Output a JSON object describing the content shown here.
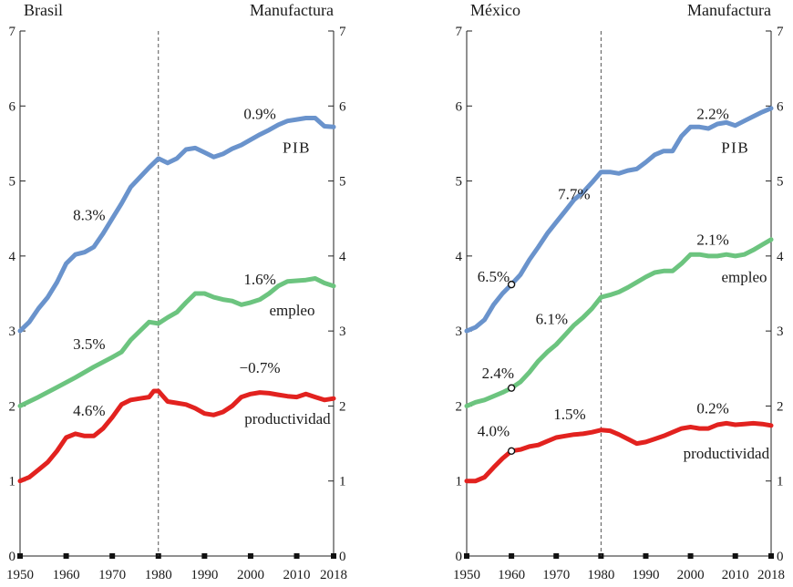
{
  "colors": {
    "pib": "#6a93cc",
    "empleo": "#6cc47f",
    "productividad": "#e2221f"
  },
  "chart_data": [
    {
      "type": "line",
      "country": "Brasil",
      "title": "Manufactura",
      "xlim": [
        1950,
        2018
      ],
      "ylim": [
        0,
        7
      ],
      "x_ticks": [
        1950,
        1960,
        1970,
        1980,
        1990,
        2000,
        2010,
        2018
      ],
      "y_ticks": [
        0,
        1,
        2,
        3,
        4,
        5,
        6,
        7
      ],
      "reference_year": 1980,
      "series": [
        {
          "name": "PIB",
          "color_key": "pib",
          "points": [
            [
              1950,
              3.0
            ],
            [
              1952,
              3.12
            ],
            [
              1954,
              3.3
            ],
            [
              1956,
              3.45
            ],
            [
              1958,
              3.65
            ],
            [
              1960,
              3.9
            ],
            [
              1962,
              4.02
            ],
            [
              1964,
              4.05
            ],
            [
              1966,
              4.12
            ],
            [
              1968,
              4.3
            ],
            [
              1970,
              4.5
            ],
            [
              1972,
              4.7
            ],
            [
              1974,
              4.92
            ],
            [
              1976,
              5.05
            ],
            [
              1978,
              5.18
            ],
            [
              1980,
              5.3
            ],
            [
              1982,
              5.24
            ],
            [
              1984,
              5.3
            ],
            [
              1986,
              5.42
            ],
            [
              1988,
              5.44
            ],
            [
              1990,
              5.38
            ],
            [
              1992,
              5.32
            ],
            [
              1994,
              5.36
            ],
            [
              1996,
              5.43
            ],
            [
              1998,
              5.48
            ],
            [
              2000,
              5.55
            ],
            [
              2002,
              5.62
            ],
            [
              2004,
              5.68
            ],
            [
              2006,
              5.75
            ],
            [
              2008,
              5.8
            ],
            [
              2010,
              5.82
            ],
            [
              2012,
              5.84
            ],
            [
              2014,
              5.84
            ],
            [
              2016,
              5.73
            ],
            [
              2018,
              5.72
            ]
          ]
        },
        {
          "name": "empleo",
          "color_key": "empleo",
          "points": [
            [
              1950,
              2.0
            ],
            [
              1954,
              2.12
            ],
            [
              1958,
              2.25
            ],
            [
              1962,
              2.38
            ],
            [
              1966,
              2.52
            ],
            [
              1970,
              2.65
            ],
            [
              1972,
              2.72
            ],
            [
              1974,
              2.88
            ],
            [
              1976,
              3.0
            ],
            [
              1978,
              3.12
            ],
            [
              1980,
              3.1
            ],
            [
              1982,
              3.18
            ],
            [
              1984,
              3.25
            ],
            [
              1986,
              3.38
            ],
            [
              1988,
              3.5
            ],
            [
              1990,
              3.5
            ],
            [
              1992,
              3.45
            ],
            [
              1994,
              3.42
            ],
            [
              1996,
              3.4
            ],
            [
              1998,
              3.35
            ],
            [
              2000,
              3.38
            ],
            [
              2002,
              3.42
            ],
            [
              2004,
              3.5
            ],
            [
              2006,
              3.6
            ],
            [
              2008,
              3.66
            ],
            [
              2010,
              3.67
            ],
            [
              2012,
              3.68
            ],
            [
              2014,
              3.7
            ],
            [
              2016,
              3.64
            ],
            [
              2018,
              3.6
            ]
          ]
        },
        {
          "name": "productividad",
          "color_key": "productividad",
          "points": [
            [
              1950,
              1.0
            ],
            [
              1952,
              1.05
            ],
            [
              1954,
              1.15
            ],
            [
              1956,
              1.25
            ],
            [
              1958,
              1.4
            ],
            [
              1960,
              1.58
            ],
            [
              1962,
              1.63
            ],
            [
              1964,
              1.6
            ],
            [
              1966,
              1.6
            ],
            [
              1968,
              1.7
            ],
            [
              1970,
              1.85
            ],
            [
              1972,
              2.02
            ],
            [
              1974,
              2.08
            ],
            [
              1976,
              2.1
            ],
            [
              1978,
              2.12
            ],
            [
              1979,
              2.2
            ],
            [
              1980,
              2.2
            ],
            [
              1982,
              2.06
            ],
            [
              1984,
              2.04
            ],
            [
              1986,
              2.02
            ],
            [
              1988,
              1.97
            ],
            [
              1990,
              1.9
            ],
            [
              1992,
              1.88
            ],
            [
              1994,
              1.92
            ],
            [
              1996,
              2.0
            ],
            [
              1998,
              2.12
            ],
            [
              2000,
              2.16
            ],
            [
              2002,
              2.18
            ],
            [
              2004,
              2.17
            ],
            [
              2006,
              2.15
            ],
            [
              2008,
              2.13
            ],
            [
              2010,
              2.12
            ],
            [
              2012,
              2.16
            ],
            [
              2014,
              2.12
            ],
            [
              2016,
              2.08
            ],
            [
              2018,
              2.1
            ]
          ]
        }
      ],
      "markers": [],
      "annotations": [
        {
          "text": "0.9%",
          "x": 2002,
          "y": 5.83
        },
        {
          "text": "8.3%",
          "x": 1965,
          "y": 4.48
        },
        {
          "text": "1.6%",
          "x": 2002,
          "y": 3.62
        },
        {
          "text": "3.5%",
          "x": 1965,
          "y": 2.76
        },
        {
          "text": "−0.7%",
          "x": 2002,
          "y": 2.44
        },
        {
          "text": "4.6%",
          "x": 1965,
          "y": 1.87
        }
      ],
      "series_labels": [
        {
          "text": "PIB",
          "x": 2010,
          "y": 5.38,
          "smallcaps": true
        },
        {
          "text": "empleo",
          "x": 2009,
          "y": 3.21
        },
        {
          "text": "productividad",
          "x": 2008,
          "y": 1.76
        }
      ]
    },
    {
      "type": "line",
      "country": "México",
      "title": "Manufactura",
      "xlim": [
        1950,
        2018
      ],
      "ylim": [
        0,
        7
      ],
      "x_ticks": [
        1950,
        1960,
        1970,
        1980,
        1990,
        2000,
        2010,
        2018
      ],
      "y_ticks": [
        0,
        1,
        2,
        3,
        4,
        5,
        6,
        7
      ],
      "reference_year": 1980,
      "series": [
        {
          "name": "PIB",
          "color_key": "pib",
          "points": [
            [
              1950,
              3.0
            ],
            [
              1952,
              3.05
            ],
            [
              1954,
              3.15
            ],
            [
              1956,
              3.35
            ],
            [
              1958,
              3.5
            ],
            [
              1960,
              3.62
            ],
            [
              1962,
              3.75
            ],
            [
              1964,
              3.95
            ],
            [
              1966,
              4.12
            ],
            [
              1968,
              4.3
            ],
            [
              1970,
              4.45
            ],
            [
              1972,
              4.6
            ],
            [
              1974,
              4.75
            ],
            [
              1976,
              4.85
            ],
            [
              1978,
              4.98
            ],
            [
              1980,
              5.12
            ],
            [
              1982,
              5.12
            ],
            [
              1984,
              5.1
            ],
            [
              1986,
              5.14
            ],
            [
              1988,
              5.16
            ],
            [
              1990,
              5.25
            ],
            [
              1992,
              5.35
            ],
            [
              1994,
              5.4
            ],
            [
              1996,
              5.4
            ],
            [
              1998,
              5.6
            ],
            [
              2000,
              5.72
            ],
            [
              2002,
              5.72
            ],
            [
              2004,
              5.7
            ],
            [
              2006,
              5.76
            ],
            [
              2008,
              5.78
            ],
            [
              2010,
              5.74
            ],
            [
              2012,
              5.8
            ],
            [
              2014,
              5.86
            ],
            [
              2016,
              5.92
            ],
            [
              2018,
              5.97
            ]
          ]
        },
        {
          "name": "empleo",
          "color_key": "empleo",
          "points": [
            [
              1950,
              2.0
            ],
            [
              1952,
              2.05
            ],
            [
              1954,
              2.08
            ],
            [
              1956,
              2.13
            ],
            [
              1958,
              2.18
            ],
            [
              1960,
              2.24
            ],
            [
              1962,
              2.32
            ],
            [
              1964,
              2.45
            ],
            [
              1966,
              2.6
            ],
            [
              1968,
              2.72
            ],
            [
              1970,
              2.82
            ],
            [
              1972,
              2.95
            ],
            [
              1974,
              3.08
            ],
            [
              1976,
              3.18
            ],
            [
              1978,
              3.3
            ],
            [
              1980,
              3.45
            ],
            [
              1982,
              3.48
            ],
            [
              1984,
              3.52
            ],
            [
              1986,
              3.58
            ],
            [
              1988,
              3.65
            ],
            [
              1990,
              3.72
            ],
            [
              1992,
              3.78
            ],
            [
              1994,
              3.8
            ],
            [
              1996,
              3.8
            ],
            [
              1998,
              3.9
            ],
            [
              2000,
              4.02
            ],
            [
              2002,
              4.02
            ],
            [
              2004,
              4.0
            ],
            [
              2006,
              4.0
            ],
            [
              2008,
              4.02
            ],
            [
              2010,
              4.0
            ],
            [
              2012,
              4.02
            ],
            [
              2014,
              4.08
            ],
            [
              2016,
              4.15
            ],
            [
              2018,
              4.22
            ]
          ]
        },
        {
          "name": "productividad",
          "color_key": "productividad",
          "points": [
            [
              1950,
              1.0
            ],
            [
              1952,
              1.0
            ],
            [
              1954,
              1.05
            ],
            [
              1956,
              1.18
            ],
            [
              1958,
              1.3
            ],
            [
              1960,
              1.4
            ],
            [
              1962,
              1.42
            ],
            [
              1964,
              1.46
            ],
            [
              1966,
              1.48
            ],
            [
              1968,
              1.53
            ],
            [
              1970,
              1.58
            ],
            [
              1972,
              1.6
            ],
            [
              1974,
              1.62
            ],
            [
              1976,
              1.63
            ],
            [
              1978,
              1.65
            ],
            [
              1980,
              1.68
            ],
            [
              1982,
              1.67
            ],
            [
              1984,
              1.62
            ],
            [
              1986,
              1.56
            ],
            [
              1988,
              1.5
            ],
            [
              1990,
              1.52
            ],
            [
              1992,
              1.56
            ],
            [
              1994,
              1.6
            ],
            [
              1996,
              1.65
            ],
            [
              1998,
              1.7
            ],
            [
              2000,
              1.72
            ],
            [
              2002,
              1.7
            ],
            [
              2004,
              1.7
            ],
            [
              2006,
              1.75
            ],
            [
              2008,
              1.77
            ],
            [
              2010,
              1.75
            ],
            [
              2012,
              1.76
            ],
            [
              2014,
              1.77
            ],
            [
              2016,
              1.76
            ],
            [
              2018,
              1.74
            ]
          ]
        }
      ],
      "markers": [
        {
          "x": 1960,
          "y": 3.62
        },
        {
          "x": 1960,
          "y": 2.24
        },
        {
          "x": 1960,
          "y": 1.4
        }
      ],
      "annotations": [
        {
          "text": "2.2%",
          "x": 2005,
          "y": 5.83
        },
        {
          "text": "7.7%",
          "x": 1974,
          "y": 4.76
        },
        {
          "text": "6.5%",
          "x": 1956,
          "y": 3.66
        },
        {
          "text": "2.1%",
          "x": 2005,
          "y": 4.15
        },
        {
          "text": "6.1%",
          "x": 1969,
          "y": 3.09
        },
        {
          "text": "2.4%",
          "x": 1957,
          "y": 2.37
        },
        {
          "text": "0.2%",
          "x": 2005,
          "y": 1.9
        },
        {
          "text": "1.5%",
          "x": 1973,
          "y": 1.82
        },
        {
          "text": "4.0%",
          "x": 1956,
          "y": 1.6
        }
      ],
      "series_labels": [
        {
          "text": "PIB",
          "x": 2010,
          "y": 5.38,
          "smallcaps": true
        },
        {
          "text": "empleo",
          "x": 2012,
          "y": 3.65
        },
        {
          "text": "productividad",
          "x": 2008,
          "y": 1.3
        }
      ]
    }
  ]
}
